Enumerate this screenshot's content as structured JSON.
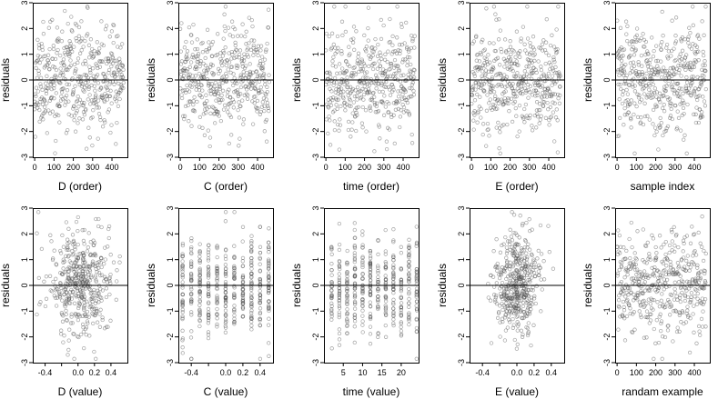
{
  "chart_data": [
    {
      "type": "scatter",
      "xlabel": "D (order)",
      "ylabel": "residuals",
      "xlim": [
        -10,
        480
      ],
      "ylim": [
        -3,
        3
      ],
      "xticks": [
        0,
        100,
        200,
        300,
        400
      ],
      "xticklabels": [
        "0",
        "100",
        "200",
        "300",
        "400"
      ],
      "yticks": [
        -3,
        -2,
        -1,
        0,
        1,
        2,
        3
      ],
      "yticklabels": [
        "-3",
        "-2",
        "-1",
        "0",
        "1",
        "2",
        "3"
      ],
      "hline": 0,
      "n_points": 450,
      "seed": 11,
      "x_kind": "uniform",
      "x_values": [
        0,
        460
      ],
      "grid": false
    },
    {
      "type": "scatter",
      "xlabel": "C (order)",
      "ylabel": "residuals",
      "xlim": [
        -10,
        480
      ],
      "ylim": [
        -3,
        3
      ],
      "xticks": [
        0,
        100,
        200,
        300,
        400
      ],
      "xticklabels": [
        "0",
        "100",
        "200",
        "300",
        "400"
      ],
      "yticks": [
        -3,
        -2,
        -1,
        0,
        1,
        2,
        3
      ],
      "yticklabels": [
        "-3",
        "-2",
        "-1",
        "0",
        "1",
        "2",
        "3"
      ],
      "hline": 0,
      "n_points": 450,
      "seed": 23,
      "x_kind": "uniform",
      "x_values": [
        0,
        460
      ],
      "grid": false
    },
    {
      "type": "scatter",
      "xlabel": "time (order)",
      "ylabel": "residuals",
      "xlim": [
        -10,
        480
      ],
      "ylim": [
        -3,
        3
      ],
      "xticks": [
        0,
        100,
        200,
        300,
        400
      ],
      "xticklabels": [
        "0",
        "100",
        "200",
        "300",
        "400"
      ],
      "yticks": [
        -3,
        -2,
        -1,
        0,
        1,
        2,
        3
      ],
      "yticklabels": [
        "-3",
        "-2",
        "-1",
        "0",
        "1",
        "2",
        "3"
      ],
      "hline": 0,
      "n_points": 450,
      "seed": 37,
      "x_kind": "uniform",
      "x_values": [
        0,
        460
      ],
      "grid": false
    },
    {
      "type": "scatter",
      "xlabel": "E (order)",
      "ylabel": "residuals",
      "xlim": [
        -10,
        480
      ],
      "ylim": [
        -3,
        3
      ],
      "xticks": [
        0,
        100,
        200,
        300,
        400
      ],
      "xticklabels": [
        "0",
        "100",
        "200",
        "300",
        "400"
      ],
      "yticks": [
        -3,
        -2,
        -1,
        0,
        1,
        2,
        3
      ],
      "yticklabels": [
        "-3",
        "-2",
        "-1",
        "0",
        "1",
        "2",
        "3"
      ],
      "hline": 0,
      "n_points": 450,
      "seed": 41,
      "x_kind": "uniform",
      "x_values": [
        0,
        460
      ],
      "grid": false
    },
    {
      "type": "scatter",
      "xlabel": "sample index",
      "ylabel": "residuals",
      "xlim": [
        -10,
        480
      ],
      "ylim": [
        -3,
        3
      ],
      "xticks": [
        0,
        100,
        200,
        300,
        400
      ],
      "xticklabels": [
        "0",
        "100",
        "200",
        "300",
        "400"
      ],
      "yticks": [
        -3,
        -2,
        -1,
        0,
        1,
        2,
        3
      ],
      "yticklabels": [
        "-3",
        "-2",
        "-1",
        "0",
        "1",
        "2",
        "3"
      ],
      "hline": 0,
      "n_points": 450,
      "seed": 53,
      "x_kind": "uniform",
      "x_values": [
        0,
        460
      ],
      "grid": false
    },
    {
      "type": "scatter",
      "xlabel": "D (value)",
      "ylabel": "residuals",
      "xlim": [
        -0.55,
        0.6
      ],
      "ylim": [
        -3,
        3
      ],
      "xticks": [
        -0.4,
        -0.2,
        0.0,
        0.2,
        0.4
      ],
      "xticklabels": [
        "-0.4",
        "",
        "0.0",
        "0.2",
        "0.4"
      ],
      "yticks": [
        -3,
        -2,
        -1,
        0,
        1,
        2,
        3
      ],
      "yticklabels": [
        "-3",
        "-2",
        "-1",
        "0",
        "1",
        "2",
        "3"
      ],
      "hline": 0,
      "n_points": 450,
      "seed": 61,
      "x_kind": "normal",
      "x_values": [
        0.02,
        0.2,
        -0.5,
        0.55
      ],
      "grid": false
    },
    {
      "type": "scatter",
      "xlabel": "C (value)",
      "ylabel": "residuals",
      "xlim": [
        -0.55,
        0.55
      ],
      "ylim": [
        -3,
        3
      ],
      "xticks": [
        -0.4,
        -0.2,
        0.0,
        0.2,
        0.4
      ],
      "xticklabels": [
        "-0.4",
        "",
        "0.0",
        "0.2",
        "0.4"
      ],
      "yticks": [
        -3,
        -2,
        -1,
        0,
        1,
        2,
        3
      ],
      "yticklabels": [
        "-3",
        "-2",
        "-1",
        "0",
        "1",
        "2",
        "3"
      ],
      "hline": 0,
      "n_points": 450,
      "seed": 71,
      "x_kind": "discrete",
      "x_values": [
        -0.5,
        -0.4,
        -0.3,
        -0.2,
        -0.1,
        0.0,
        0.1,
        0.2,
        0.3,
        0.4,
        0.5
      ],
      "grid": false
    },
    {
      "type": "scatter",
      "xlabel": "time (value)",
      "ylabel": "residuals",
      "xlim": [
        0,
        24.5
      ],
      "ylim": [
        -3,
        3
      ],
      "xticks": [
        5,
        10,
        15,
        20
      ],
      "xticklabels": [
        "5",
        "10",
        "15",
        "20"
      ],
      "yticks": [
        -3,
        -2,
        -1,
        0,
        1,
        2,
        3
      ],
      "yticklabels": [
        "-3",
        "-2",
        "-1",
        "0",
        "1",
        "2",
        "3"
      ],
      "hline": 0,
      "n_points": 450,
      "seed": 83,
      "x_kind": "discrete",
      "x_values": [
        2,
        4,
        6,
        8,
        10,
        12,
        14,
        16,
        18,
        20,
        22,
        24
      ],
      "grid": false
    },
    {
      "type": "scatter",
      "xlabel": "E (value)",
      "ylabel": "residuals",
      "xlim": [
        -0.55,
        0.55
      ],
      "ylim": [
        -3,
        3
      ],
      "xticks": [
        -0.4,
        -0.2,
        0.0,
        0.2,
        0.4
      ],
      "xticklabels": [
        "-0.4",
        "",
        "0.0",
        "0.2",
        "0.4"
      ],
      "yticks": [
        -3,
        -2,
        -1,
        0,
        1,
        2,
        3
      ],
      "yticklabels": [
        "-3",
        "-2",
        "-1",
        "0",
        "1",
        "2",
        "3"
      ],
      "hline": 0,
      "n_points": 450,
      "seed": 97,
      "x_kind": "normal",
      "x_values": [
        0.0,
        0.13,
        -0.5,
        0.5
      ],
      "grid": false
    },
    {
      "type": "scatter",
      "xlabel": "randam example",
      "ylabel": "residuals",
      "xlim": [
        -10,
        480
      ],
      "ylim": [
        -3,
        3
      ],
      "xticks": [
        0,
        100,
        200,
        300,
        400
      ],
      "xticklabels": [
        "0",
        "100",
        "200",
        "300",
        "400"
      ],
      "yticks": [
        -3,
        -2,
        -1,
        0,
        1,
        2,
        3
      ],
      "yticklabels": [
        "-3",
        "-2",
        "-1",
        "0",
        "1",
        "2",
        "3"
      ],
      "hline": 0,
      "n_points": 450,
      "seed": 103,
      "x_kind": "uniform",
      "x_values": [
        0,
        460
      ],
      "grid": false
    }
  ]
}
